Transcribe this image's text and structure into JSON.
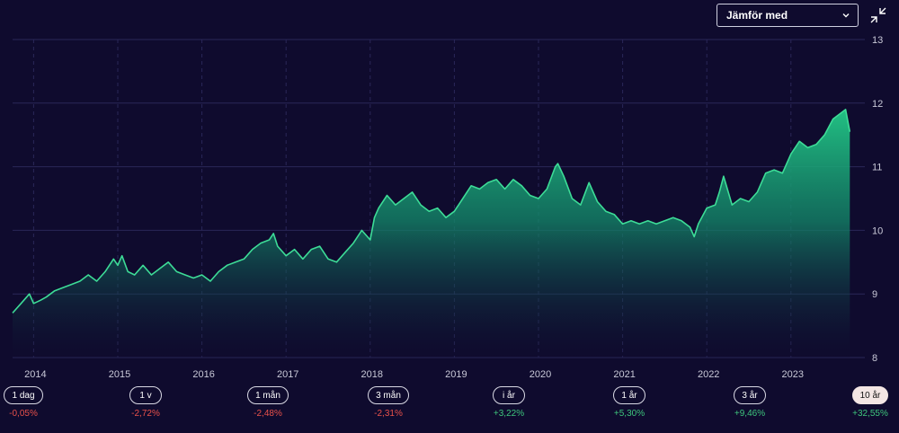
{
  "compare": {
    "label": "Jämför med"
  },
  "periods": [
    {
      "label": "1 dag",
      "change": "-0,05%",
      "direction": "neg",
      "active": false
    },
    {
      "label": "1 v",
      "change": "-2,72%",
      "direction": "neg",
      "active": false
    },
    {
      "label": "1 mån",
      "change": "-2,48%",
      "direction": "neg",
      "active": false
    },
    {
      "label": "3 mån",
      "change": "-2,31%",
      "direction": "neg",
      "active": false
    },
    {
      "label": "i år",
      "change": "+3,22%",
      "direction": "pos",
      "active": false
    },
    {
      "label": "1 år",
      "change": "+5,30%",
      "direction": "pos",
      "active": false
    },
    {
      "label": "3 år",
      "change": "+9,46%",
      "direction": "pos",
      "active": false
    },
    {
      "label": "10 år",
      "change": "+32,55%",
      "direction": "pos",
      "active": true
    }
  ],
  "chart_data": {
    "type": "area",
    "xlim": [
      2013.75,
      2023.75
    ],
    "ylim": [
      8,
      13
    ],
    "y_ticks": [
      8,
      9,
      10,
      11,
      12,
      13
    ],
    "x_ticks": [
      2014,
      2015,
      2016,
      2017,
      2018,
      2019,
      2020,
      2021,
      2022,
      2023
    ],
    "x_tick_labels": [
      "2014",
      "2015",
      "2016",
      "2017",
      "2018",
      "2019",
      "2020",
      "2021",
      "2022",
      "2023"
    ],
    "y_axis_position": "right",
    "grid": true,
    "colors": {
      "line": "#3ddc97",
      "fill_top": "#22c083",
      "fill_bottom": "#0f0b2e",
      "grid": "#2a2758"
    },
    "series": [
      {
        "x": [
          2013.75,
          2013.85,
          2013.95,
          2014.0,
          2014.08,
          2014.15,
          2014.25,
          2014.35,
          2014.45,
          2014.55,
          2014.65,
          2014.75,
          2014.85,
          2014.95,
          2015.0,
          2015.05,
          2015.12,
          2015.2,
          2015.3,
          2015.4,
          2015.5,
          2015.6,
          2015.7,
          2015.8,
          2015.9,
          2016.0,
          2016.1,
          2016.2,
          2016.3,
          2016.4,
          2016.5,
          2016.6,
          2016.7,
          2016.8,
          2016.85,
          2016.9,
          2017.0,
          2017.1,
          2017.2,
          2017.3,
          2017.4,
          2017.5,
          2017.6,
          2017.7,
          2017.8,
          2017.9,
          2018.0,
          2018.05,
          2018.1,
          2018.2,
          2018.3,
          2018.4,
          2018.5,
          2018.6,
          2018.7,
          2018.8,
          2018.9,
          2019.0,
          2019.1,
          2019.2,
          2019.3,
          2019.4,
          2019.5,
          2019.6,
          2019.7,
          2019.8,
          2019.9,
          2020.0,
          2020.1,
          2020.2,
          2020.23,
          2020.3,
          2020.4,
          2020.5,
          2020.6,
          2020.7,
          2020.8,
          2020.9,
          2021.0,
          2021.1,
          2021.2,
          2021.3,
          2021.4,
          2021.5,
          2021.6,
          2021.7,
          2021.8,
          2021.85,
          2021.9,
          2022.0,
          2022.1,
          2022.15,
          2022.2,
          2022.3,
          2022.4,
          2022.5,
          2022.6,
          2022.7,
          2022.8,
          2022.9,
          2023.0,
          2023.1,
          2023.2,
          2023.3,
          2023.4,
          2023.5,
          2023.6,
          2023.65,
          2023.7
        ],
        "values": [
          8.7,
          8.85,
          9.0,
          8.85,
          8.9,
          8.95,
          9.05,
          9.1,
          9.15,
          9.2,
          9.3,
          9.2,
          9.35,
          9.55,
          9.45,
          9.6,
          9.35,
          9.3,
          9.45,
          9.3,
          9.4,
          9.5,
          9.35,
          9.3,
          9.25,
          9.3,
          9.2,
          9.35,
          9.45,
          9.5,
          9.55,
          9.7,
          9.8,
          9.85,
          9.95,
          9.75,
          9.6,
          9.7,
          9.55,
          9.7,
          9.75,
          9.55,
          9.5,
          9.65,
          9.8,
          10.0,
          9.85,
          10.2,
          10.35,
          10.55,
          10.4,
          10.5,
          10.6,
          10.4,
          10.3,
          10.35,
          10.2,
          10.3,
          10.5,
          10.7,
          10.65,
          10.75,
          10.8,
          10.65,
          10.8,
          10.7,
          10.55,
          10.5,
          10.65,
          11.0,
          11.05,
          10.85,
          10.5,
          10.4,
          10.75,
          10.45,
          10.3,
          10.25,
          10.1,
          10.15,
          10.1,
          10.15,
          10.1,
          10.15,
          10.2,
          10.15,
          10.05,
          9.9,
          10.1,
          10.35,
          10.4,
          10.6,
          10.85,
          10.4,
          10.5,
          10.45,
          10.6,
          10.9,
          10.95,
          10.9,
          11.2,
          11.4,
          11.3,
          11.35,
          11.5,
          11.75,
          11.85,
          11.9,
          11.55
        ]
      }
    ]
  }
}
